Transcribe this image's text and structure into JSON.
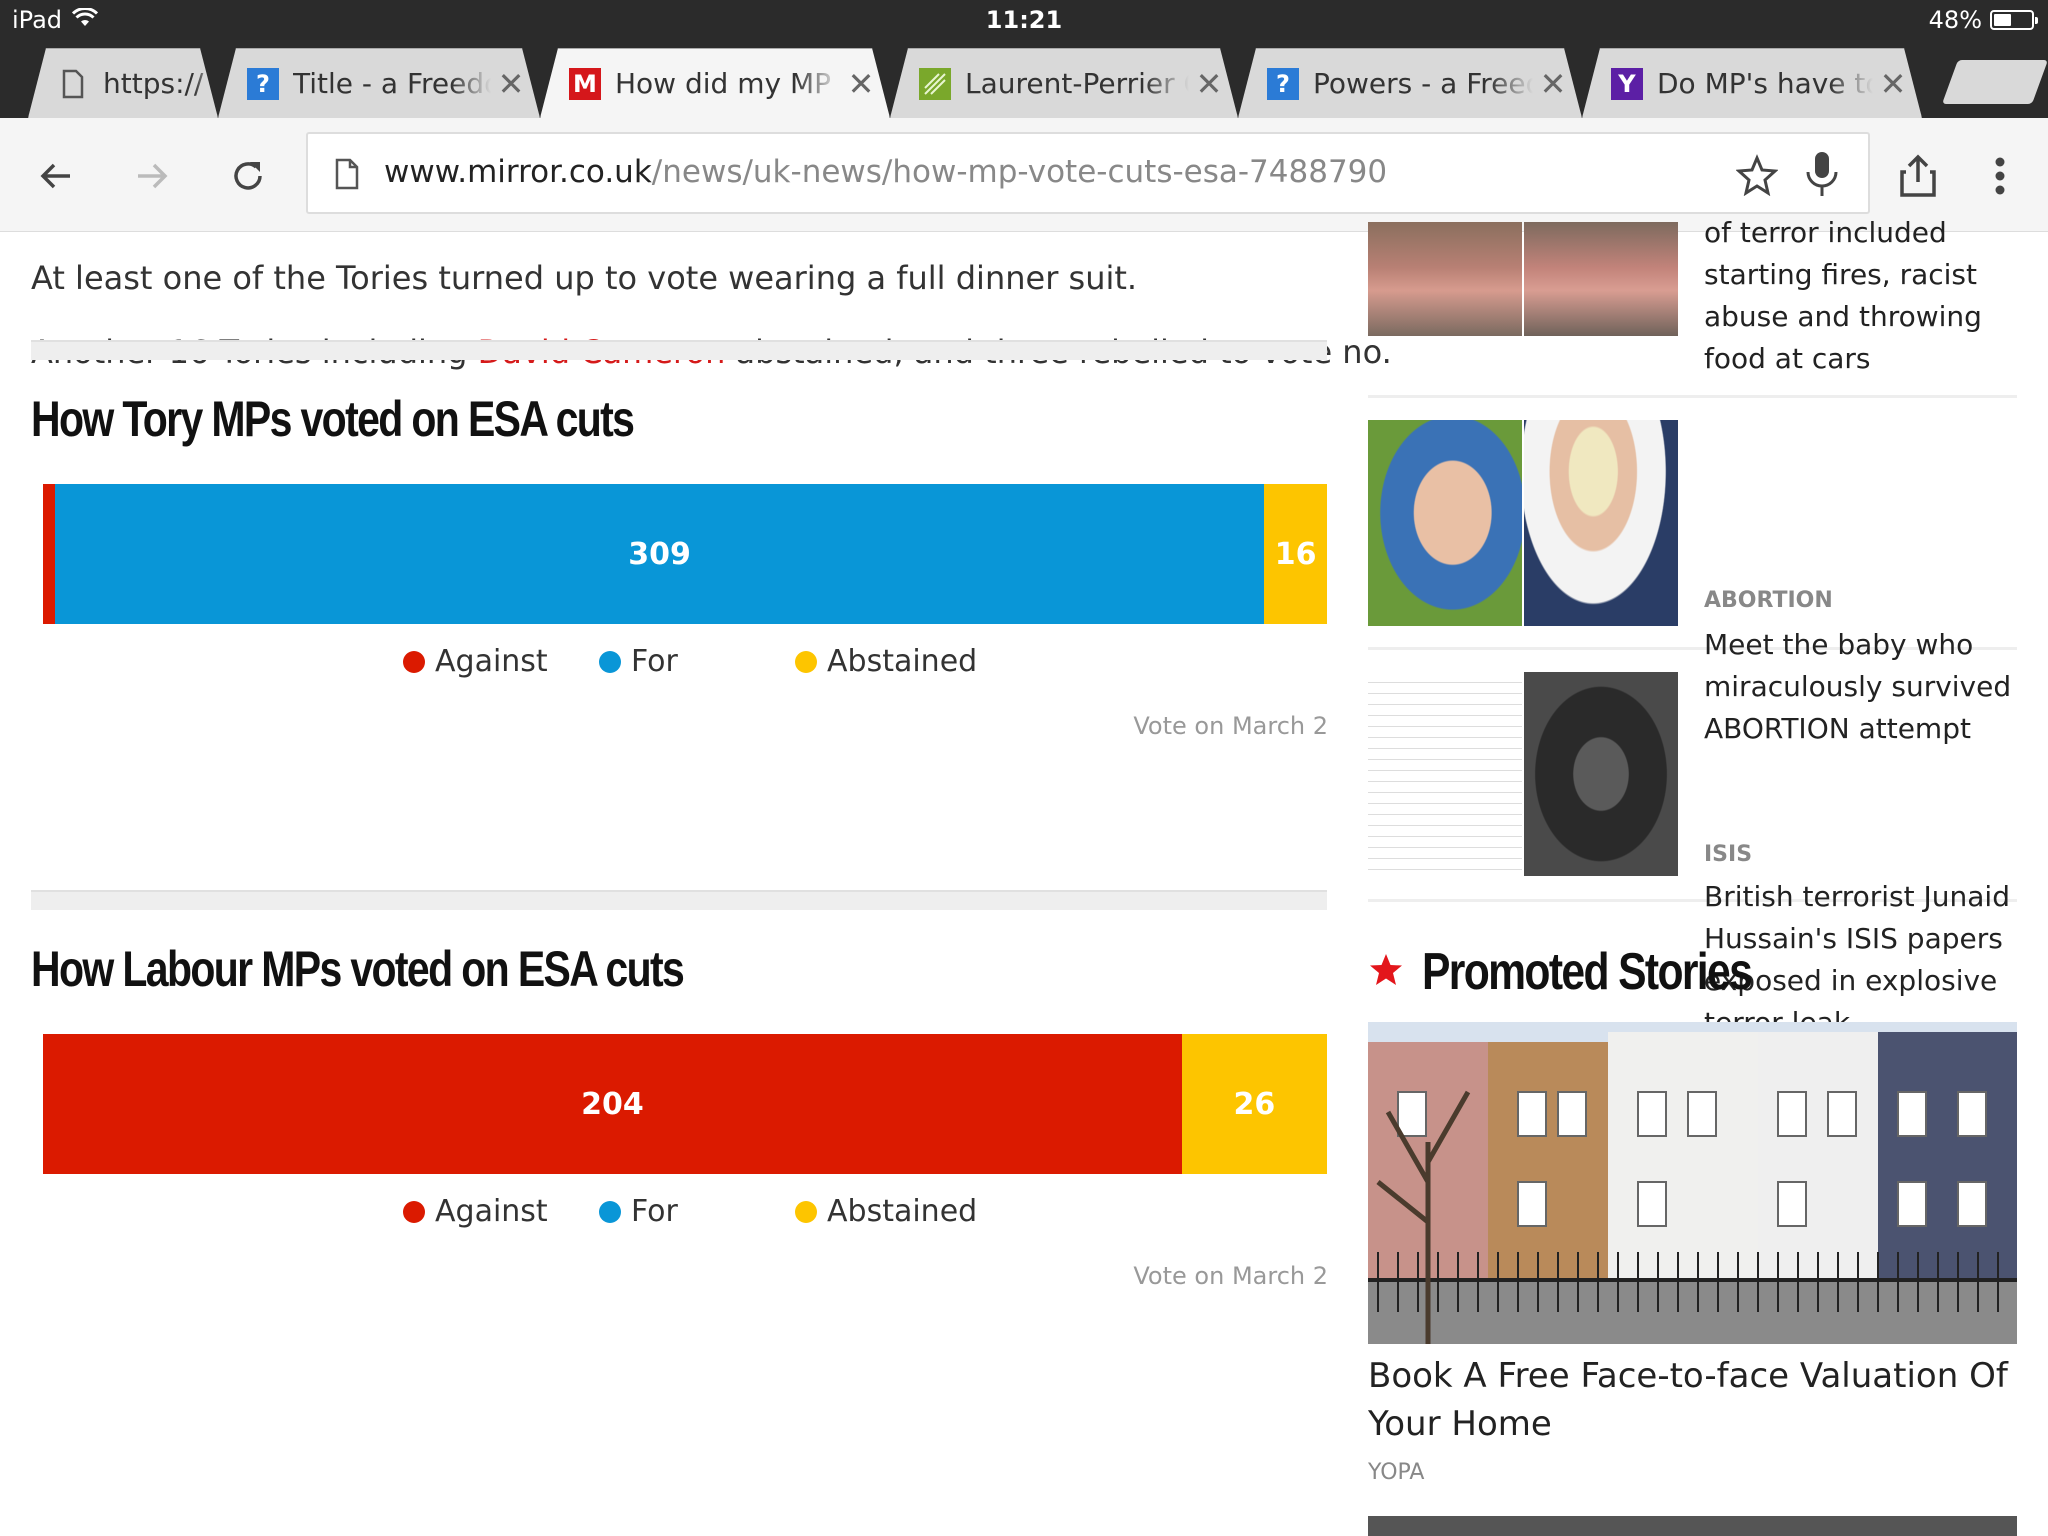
{
  "status": {
    "device": "iPad",
    "time": "11:21",
    "battery": "48%",
    "battery_level": 0.48
  },
  "tabs": [
    {
      "label": "https://",
      "favicon": "page-icon",
      "favicon_color": "#ffffff",
      "closable": false
    },
    {
      "label": "Title - a Freedom",
      "favicon": "question-icon",
      "favicon_color": "#2b7bd6",
      "closable": true
    },
    {
      "label": "How did my MP v",
      "favicon": "mirror-m-icon",
      "favicon_color": "#d5171b",
      "closable": true,
      "active": true
    },
    {
      "label": "Laurent-Perrier Cu",
      "favicon": "leaf-icon",
      "favicon_color": "#7aa82b",
      "closable": true
    },
    {
      "label": "Powers - a Freedo",
      "favicon": "question-icon",
      "favicon_color": "#2b7bd6",
      "closable": true
    },
    {
      "label": "Do MP's have to v",
      "favicon": "yahoo-y-icon",
      "favicon_color": "#5c1fa5",
      "closable": true
    }
  ],
  "favicon_glyphs": {
    "question-icon": "?",
    "mirror-m-icon": "M",
    "yahoo-y-icon": "Y",
    "leaf-icon": "",
    "page-icon": ""
  },
  "omnibox": {
    "host": "www.mirror.co.uk",
    "path": "/news/uk-news/how-mp-vote-cuts-esa-7488790"
  },
  "article": {
    "para1": "At least one of the Tories turned up to vote wearing a full dinner suit.",
    "para2_before": "Another 16 Tories including ",
    "para2_link": "David Cameron",
    "para2_after": " abstained, and three rebelled to vote no."
  },
  "colors": {
    "against": "#db1a00",
    "for": "#0996d7",
    "abstained": "#fdc500",
    "link": "#d51a1a"
  },
  "chart_data": [
    {
      "type": "bar",
      "orientation": "horizontal-stacked",
      "title": "How Tory MPs voted on ESA cuts",
      "series": [
        {
          "name": "Against",
          "value": 3,
          "label": ""
        },
        {
          "name": "For",
          "value": 309,
          "label": "309"
        },
        {
          "name": "Abstained",
          "value": 16,
          "label": "16"
        }
      ],
      "legend": [
        "Against",
        "For",
        "Abstained"
      ],
      "note": "Vote on March 2"
    },
    {
      "type": "bar",
      "orientation": "horizontal-stacked",
      "title": "How Labour MPs voted on ESA cuts",
      "series": [
        {
          "name": "Against",
          "value": 204,
          "label": "204"
        },
        {
          "name": "For",
          "value": 0,
          "label": ""
        },
        {
          "name": "Abstained",
          "value": 26,
          "label": "26"
        }
      ],
      "legend": [
        "Against",
        "For",
        "Abstained"
      ],
      "note": "Vote on March 2"
    }
  ],
  "sidebar": {
    "stories": [
      {
        "category": "",
        "headline": "of terror included starting fires, racist abuse and throwing food at cars"
      },
      {
        "category": "ABORTION",
        "headline": "Meet the baby who miraculously survived ABORTION attempt"
      },
      {
        "category": "ISIS",
        "headline": "British terrorist Junaid Hussain's ISIS papers exposed in explosive terror leak"
      }
    ],
    "promoted": {
      "title": "Promoted Stories",
      "headline": "Book A Free Face-to-face Valuation Of Your Home",
      "source": "YOPA"
    }
  }
}
